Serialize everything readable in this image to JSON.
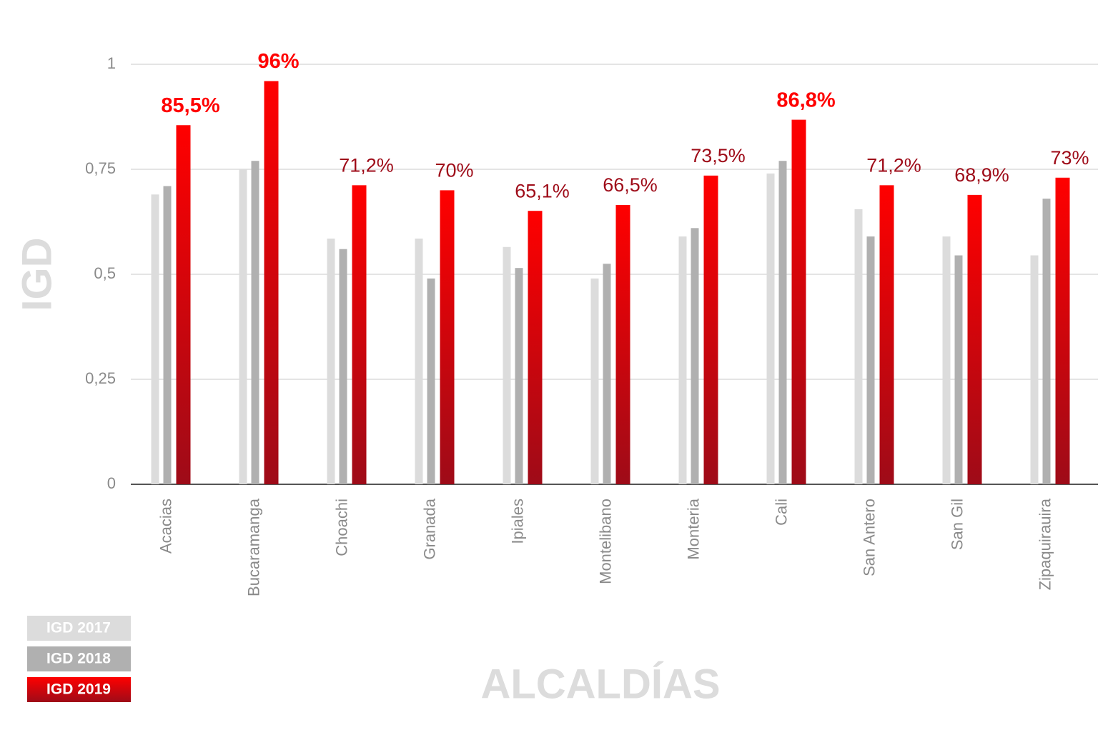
{
  "chart_data": {
    "type": "bar",
    "y_label": "IGD",
    "x_label": "ALCALDÍAS",
    "categories": [
      "Acacias",
      "Bucaramanga",
      "Choachi",
      "Granada",
      "Ipiales",
      "Montelibano",
      "Monteria",
      "Cali",
      "San Antero",
      "San Gil",
      "Zipaquirauira"
    ],
    "series": [
      {
        "name": "IGD 2017",
        "color": "#dcdcdc",
        "values": [
          0.69,
          0.75,
          0.585,
          0.585,
          0.565,
          0.49,
          0.59,
          0.74,
          0.655,
          0.59,
          0.545
        ]
      },
      {
        "name": "IGD 2018",
        "color": "#b0b0b0",
        "values": [
          0.71,
          0.77,
          0.56,
          0.49,
          0.515,
          0.525,
          0.61,
          0.77,
          0.59,
          0.545,
          0.68
        ]
      },
      {
        "name": "IGD 2019",
        "color": [
          "#ff0000",
          "#9e0b18"
        ],
        "values": [
          0.855,
          0.96,
          0.712,
          0.7,
          0.651,
          0.665,
          0.735,
          0.868,
          0.712,
          0.689,
          0.73
        ],
        "value_labels": [
          "85,5%",
          "96%",
          "71,2%",
          "70%",
          "65,1%",
          "66,5%",
          "73,5%",
          "86,8%",
          "71,2%",
          "68,9%",
          "73%"
        ],
        "value_label_colors": [
          "#ff0000",
          "#ff0000",
          "#9e0b18",
          "#9e0b18",
          "#9e0b18",
          "#9e0b18",
          "#9e0b18",
          "#ff0000",
          "#9e0b18",
          "#9e0b18",
          "#9e0b18"
        ]
      }
    ],
    "ylim": [
      0,
      1
    ],
    "yticks": [
      0,
      {
        "value": 0.25,
        "label": "0,25"
      },
      {
        "value": 0.5,
        "label": "0,5"
      },
      {
        "value": 0.75,
        "label": "0,75"
      },
      1
    ],
    "grid": true
  }
}
